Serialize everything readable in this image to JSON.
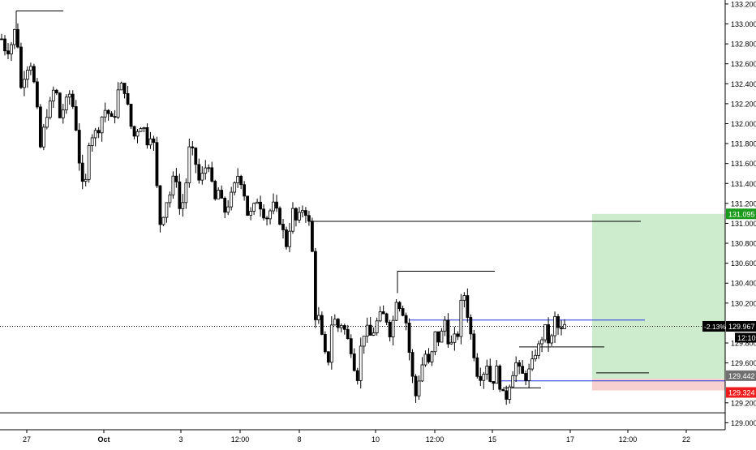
{
  "chart_data": {
    "type": "candlestick",
    "price_axis": {
      "min": 128.93,
      "max": 133.24,
      "ticks": [
        "133.200",
        "133.000",
        "132.800",
        "132.600",
        "132.400",
        "132.200",
        "132.000",
        "131.800",
        "131.600",
        "131.400",
        "131.200",
        "131.000",
        "130.800",
        "130.600",
        "130.400",
        "130.200",
        "129.800",
        "129.600",
        "129.200",
        "129.000"
      ]
    },
    "time_axis": {
      "labels": [
        "27",
        "Oct",
        "3",
        "12:00",
        "8",
        "10",
        "12:00",
        "15",
        "17",
        "12:00",
        "22"
      ],
      "bold_labels": [
        "Oct"
      ]
    },
    "price_labels": {
      "target": {
        "value": 131.095,
        "text": "131.095",
        "color": "#1a9a1a"
      },
      "current": {
        "value": 129.967,
        "text": "129.967",
        "change": "-2.13%",
        "countdown": "12:10",
        "color": "#000000"
      },
      "entry": {
        "value": 129.442,
        "text": "129.442",
        "color": "#707070"
      },
      "stop": {
        "value": 129.324,
        "text": "129.324",
        "color": "#ee1c1c"
      }
    },
    "position_box": {
      "entry": 129.442,
      "target": 131.095,
      "stop": 129.324,
      "profit_color": "#cdeccd",
      "loss_color": "#f8d0d0"
    },
    "support_resistance_lines": [
      {
        "price": 133.13,
        "color": "#000000"
      },
      {
        "price": 131.02,
        "color": "#000000"
      },
      {
        "price": 130.52,
        "color": "#000000"
      },
      {
        "price": 130.03,
        "color": "#1f2fe6"
      },
      {
        "price": 129.76,
        "color": "#000000"
      },
      {
        "price": 129.5,
        "color": "#000000"
      },
      {
        "price": 129.42,
        "color": "#1f2fe6"
      },
      {
        "price": 129.35,
        "color": "#000000"
      },
      {
        "price": 129.1,
        "color": "#000000"
      }
    ],
    "price_path": [
      [
        132.85,
        0
      ],
      [
        132.7,
        6
      ],
      [
        132.8,
        12
      ],
      [
        133.0,
        18
      ],
      [
        132.35,
        24
      ],
      [
        132.55,
        30
      ],
      [
        132.6,
        36
      ],
      [
        132.3,
        42
      ],
      [
        131.75,
        48
      ],
      [
        132.05,
        54
      ],
      [
        132.2,
        60
      ],
      [
        132.4,
        66
      ],
      [
        132.05,
        72
      ],
      [
        132.2,
        78
      ],
      [
        132.3,
        84
      ],
      [
        132.1,
        90
      ],
      [
        131.6,
        96
      ],
      [
        131.25,
        102
      ],
      [
        131.85,
        108
      ],
      [
        131.9,
        114
      ],
      [
        131.95,
        120
      ],
      [
        132.15,
        126
      ],
      [
        132.1,
        132
      ],
      [
        132.0,
        138
      ],
      [
        132.35,
        144
      ],
      [
        132.4,
        150
      ],
      [
        132.15,
        156
      ],
      [
        131.85,
        162
      ],
      [
        131.95,
        168
      ],
      [
        132.0,
        174
      ],
      [
        131.8,
        180
      ],
      [
        131.95,
        186
      ],
      [
        131.3,
        192
      ],
      [
        130.95,
        196
      ],
      [
        131.2,
        202
      ],
      [
        131.3,
        208
      ],
      [
        131.55,
        214
      ],
      [
        131.1,
        220
      ],
      [
        131.3,
        226
      ],
      [
        131.8,
        232
      ],
      [
        131.65,
        238
      ],
      [
        131.4,
        244
      ],
      [
        131.55,
        250
      ],
      [
        131.6,
        256
      ],
      [
        131.2,
        262
      ],
      [
        131.35,
        268
      ],
      [
        131.1,
        274
      ],
      [
        131.2,
        280
      ],
      [
        131.35,
        286
      ],
      [
        131.5,
        292
      ],
      [
        131.35,
        298
      ],
      [
        131.05,
        304
      ],
      [
        131.15,
        310
      ],
      [
        131.25,
        316
      ],
      [
        131.1,
        322
      ],
      [
        131.05,
        328
      ],
      [
        131.2,
        334
      ],
      [
        131.1,
        340
      ],
      [
        130.95,
        346
      ],
      [
        130.75,
        352
      ],
      [
        131.15,
        358
      ],
      [
        131.0,
        364
      ],
      [
        131.15,
        370
      ],
      [
        131.1,
        376
      ],
      [
        130.9,
        382
      ],
      [
        130.05,
        386
      ],
      [
        130.1,
        390
      ],
      [
        129.8,
        396
      ],
      [
        129.55,
        402
      ],
      [
        130.1,
        408
      ],
      [
        129.95,
        414
      ],
      [
        130.0,
        420
      ],
      [
        129.85,
        426
      ],
      [
        129.7,
        432
      ],
      [
        129.4,
        438
      ],
      [
        129.85,
        444
      ],
      [
        129.95,
        450
      ],
      [
        129.85,
        456
      ],
      [
        130.0,
        462
      ],
      [
        130.1,
        468
      ],
      [
        130.05,
        474
      ],
      [
        129.85,
        480
      ],
      [
        130.25,
        486
      ],
      [
        130.15,
        492
      ],
      [
        130.05,
        498
      ],
      [
        129.6,
        504
      ],
      [
        129.25,
        510
      ],
      [
        129.5,
        516
      ],
      [
        129.7,
        522
      ],
      [
        129.55,
        528
      ],
      [
        129.9,
        534
      ],
      [
        129.8,
        540
      ],
      [
        130.05,
        546
      ],
      [
        129.75,
        552
      ],
      [
        129.85,
        558
      ],
      [
        129.9,
        564
      ],
      [
        130.4,
        568
      ],
      [
        130.1,
        574
      ],
      [
        129.8,
        580
      ],
      [
        129.5,
        586
      ],
      [
        129.45,
        592
      ],
      [
        129.6,
        598
      ],
      [
        129.35,
        604
      ],
      [
        129.55,
        610
      ],
      [
        129.3,
        616
      ],
      [
        129.25,
        622
      ],
      [
        129.45,
        628
      ],
      [
        129.6,
        634
      ],
      [
        129.5,
        640
      ],
      [
        129.45,
        646
      ],
      [
        129.55,
        652
      ],
      [
        129.7,
        658
      ],
      [
        129.8,
        664
      ],
      [
        129.95,
        670
      ],
      [
        129.75,
        676
      ],
      [
        130.05,
        682
      ],
      [
        129.9,
        688
      ],
      [
        129.97,
        694
      ]
    ]
  }
}
